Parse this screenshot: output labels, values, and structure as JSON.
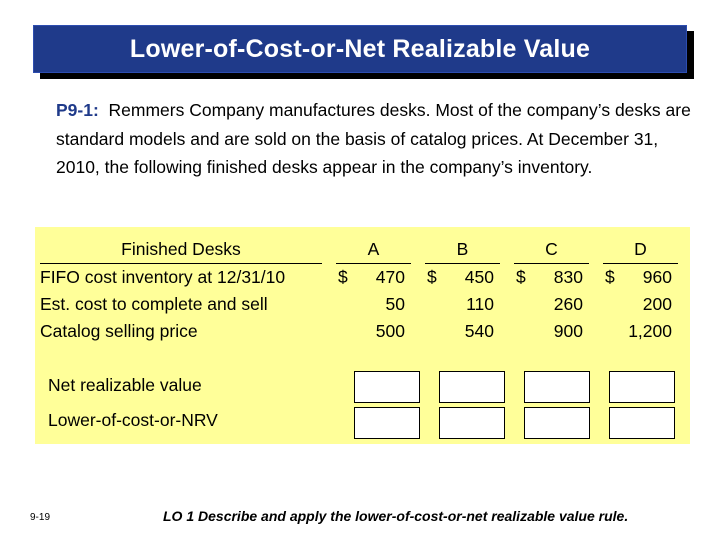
{
  "title": "Lower-of-Cost-or-Net Realizable Value",
  "problem": {
    "label": "P9-1:",
    "text": "Remmers Company manufactures desks. Most of the company’s desks are standard models and are sold on the basis of catalog prices. At December 31, 2010, the following finished desks appear in the company’s inventory."
  },
  "table": {
    "headers": [
      "Finished Desks",
      "A",
      "B",
      "C",
      "D"
    ],
    "rows": [
      {
        "label": "FIFO cost inventory at 12/31/10",
        "currency": "$",
        "values": [
          "470",
          "450",
          "830",
          "960"
        ]
      },
      {
        "label": "Est. cost to complete and sell",
        "currency": "",
        "values": [
          "50",
          "110",
          "260",
          "200"
        ]
      },
      {
        "label": "Catalog selling price",
        "currency": "",
        "values": [
          "500",
          "540",
          "900",
          "1,200"
        ]
      }
    ],
    "nrv_label": "Net realizable value",
    "lcnrv_label": "Lower-of-cost-or-NRV"
  },
  "slide_number": "9-19",
  "footer": "LO 1  Describe and apply the lower-of-cost-or-net realizable value rule."
}
